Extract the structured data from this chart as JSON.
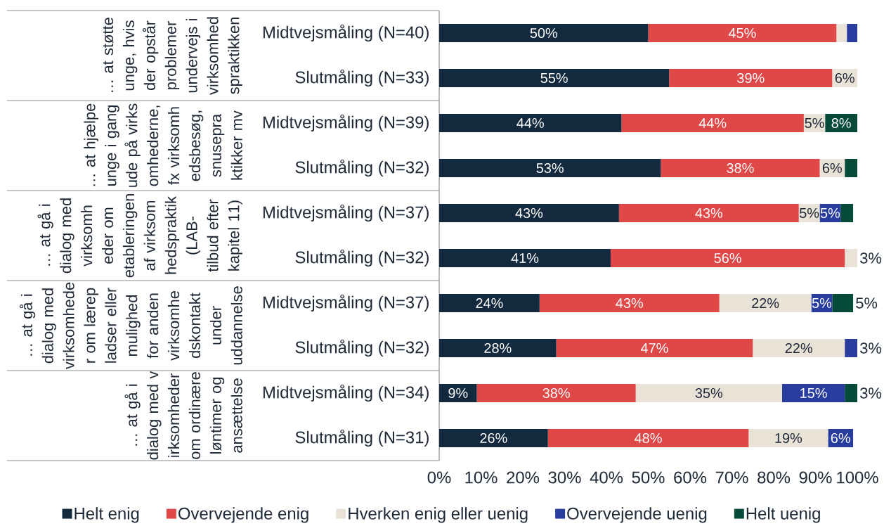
{
  "chart_data": {
    "type": "bar",
    "orientation": "horizontal",
    "stacked": true,
    "legend": "bottom",
    "categories": [
      "Midtvejsmåling (N=40)",
      "Slutmåling (N=33)",
      "Midtvejsmåling (N=39)",
      "Slutmåling (N=32)",
      "Midtvejsmåling (N=37)",
      "Slutmåling (N=32)",
      "Midtvejsmåling (N=37)",
      "Slutmåling (N=32)",
      "Midtvejsmåling (N=34)",
      "Slutmåling (N=31)"
    ],
    "annotations": [
      "… at støtte unge, hvis der opstår problemer undervejs i virksomhedspraktikken",
      "… at hjælpe unge i gang ude på virksomhederne, fx virksomhedsbesøg, snusepraktikker mv",
      "… at gå i dialog med virksomheder om etableringen af virksomhedspraktik (LAB-tilbud efter kapitel 11)",
      "… at gå i dialog med virksomheder om lærepladser eller mulighed for anden virksomhedskontakt under uddannelse",
      "… at gå i dialog med virksomheder om ordinære løntimer og ansættelse"
    ],
    "xlim": [
      0,
      100
    ],
    "xticks": [
      {
        "value": 0,
        "label": "0%"
      },
      {
        "value": 10,
        "label": "10%"
      },
      {
        "value": 20,
        "label": "20%"
      },
      {
        "value": 30,
        "label": "30%"
      },
      {
        "value": 40,
        "label": "40%"
      },
      {
        "value": 50,
        "label": "50%"
      },
      {
        "value": 60,
        "label": "60%"
      },
      {
        "value": 70,
        "label": "70%"
      },
      {
        "value": 80,
        "label": "80%"
      },
      {
        "value": 90,
        "label": "90%"
      },
      {
        "value": 100,
        "label": "100%"
      }
    ],
    "series": [
      {
        "name": "Helt enig",
        "color": "#132a3e",
        "values": [
          50,
          55,
          43.6,
          53,
          43,
          41,
          24,
          28,
          9,
          26
        ],
        "value_labels": [
          "50%",
          "55%",
          "44%",
          "53%",
          "43%",
          "41%",
          "24%",
          "28%",
          "9%",
          "26%"
        ]
      },
      {
        "name": "Overvejende enig",
        "color": "#e04848",
        "values": [
          45,
          39,
          43.6,
          38,
          43,
          56,
          43,
          47,
          38,
          48
        ],
        "value_labels": [
          "45%",
          "39%",
          "44%",
          "38%",
          "43%",
          "56%",
          "43%",
          "47%",
          "38%",
          "48%"
        ]
      },
      {
        "name": "Hverken enig eller uenig",
        "color": "#e8e2d7",
        "values": [
          2.5,
          6,
          5.1,
          6,
          5,
          3,
          22,
          22,
          35,
          19
        ],
        "value_labels": [
          null,
          "6%",
          "5%",
          "6%",
          "5%",
          "3%",
          "22%",
          "22%",
          "35%",
          "19%"
        ]
      },
      {
        "name": "Overvejende uenig",
        "color": "#283d9e",
        "values": [
          2.5,
          0,
          0,
          0,
          5,
          0,
          5,
          3,
          15,
          6
        ],
        "value_labels": [
          null,
          null,
          null,
          null,
          "5%",
          null,
          "5%",
          "3%",
          "15%",
          "6%"
        ]
      },
      {
        "name": "Helt uenig",
        "color": "#064a3a",
        "values": [
          0,
          0,
          7.7,
          3,
          3,
          0,
          5,
          0,
          3,
          0
        ],
        "value_labels": [
          null,
          null,
          "8%",
          null,
          null,
          null,
          "5%",
          null,
          "3%",
          null
        ]
      }
    ]
  }
}
